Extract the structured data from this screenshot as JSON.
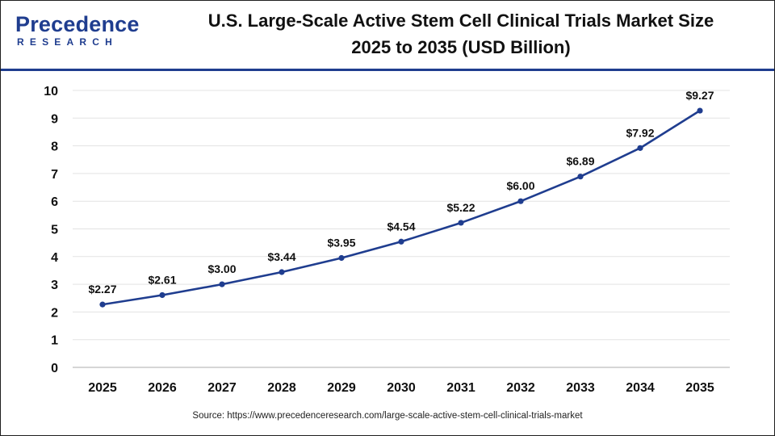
{
  "brand": {
    "name_word": "Precedence",
    "name_sub": "RESEARCH",
    "color": "#1f3d8f"
  },
  "header": {
    "title_line1": "U.S. Large-Scale Active Stem Cell Clinical Trials Market Size",
    "title_line2": "2025 to 2035 (USD Billion)"
  },
  "source": "Source: https://www.precedenceresearch.com/large-scale-active-stem-cell-clinical-trials-market",
  "chart_data": {
    "type": "line",
    "title": "U.S. Large-Scale Active Stem Cell Clinical Trials Market Size 2025 to 2035 (USD Billion)",
    "xlabel": "",
    "ylabel": "",
    "categories": [
      "2025",
      "2026",
      "2027",
      "2028",
      "2029",
      "2030",
      "2031",
      "2032",
      "2033",
      "2034",
      "2035"
    ],
    "series": [
      {
        "values": [
          2.27,
          2.61,
          3.0,
          3.44,
          3.95,
          4.54,
          5.22,
          6.0,
          6.89,
          7.92,
          9.27
        ],
        "labels": [
          "$2.27",
          "$2.61",
          "$3.00",
          "$3.44",
          "$3.95",
          "$4.54",
          "$5.22",
          "$6.00",
          "$6.89",
          "$7.92",
          "$9.27"
        ],
        "color": "#1f3d8f"
      }
    ],
    "ylim": [
      0,
      10
    ],
    "yticks": [
      0,
      1,
      2,
      3,
      4,
      5,
      6,
      7,
      8,
      9,
      10
    ],
    "grid": true,
    "legend": "none"
  }
}
